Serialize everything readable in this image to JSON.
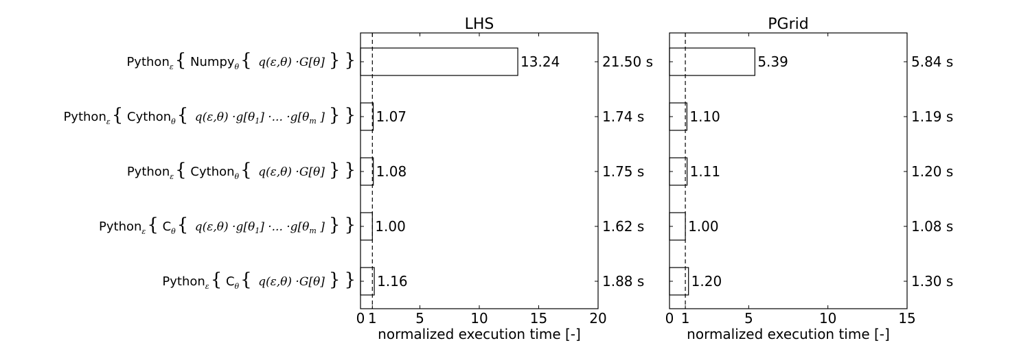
{
  "chart_data": [
    {
      "type": "bar",
      "orientation": "horizontal",
      "title": "LHS",
      "xlabel": "normalized execution time [-]",
      "xlim": [
        0,
        20
      ],
      "xticks": [
        "0",
        "1",
        "5",
        "10",
        "15",
        "20"
      ],
      "reference_line": 1,
      "categories": [
        "Python_ε{ Numpy_θ{ q(ε,θ) ·G[θ] } }",
        "Python_ε{ Cython_θ{ q(ε,θ) ·g[θ_1] ·... ·g[θ_m] } }",
        "Python_ε{ Cython_θ{ q(ε,θ) ·G[θ] } }",
        "Python_ε{ C_θ{ q(ε,θ) ·g[θ_1] ·... ·g[θ_m] } }",
        "Python_ε{ C_θ{ q(ε,θ) ·G[θ] } }"
      ],
      "values": [
        13.24,
        1.07,
        1.08,
        1.0,
        1.16
      ],
      "value_labels": [
        "13.24",
        "1.07",
        "1.08",
        "1.00",
        "1.16"
      ],
      "right_labels": [
        "21.50 s",
        "1.74 s",
        "1.75 s",
        "1.62 s",
        "1.88 s"
      ]
    },
    {
      "type": "bar",
      "orientation": "horizontal",
      "title": "PGrid",
      "xlabel": "normalized execution time [-]",
      "xlim": [
        0,
        15
      ],
      "xticks": [
        "0",
        "1",
        "5",
        "10",
        "15"
      ],
      "reference_line": 1,
      "values": [
        5.39,
        1.1,
        1.11,
        1.0,
        1.2
      ],
      "value_labels": [
        "5.39",
        "1.10",
        "1.11",
        "1.00",
        "1.20"
      ],
      "right_labels": [
        "5.84 s",
        "1.19 s",
        "1.20 s",
        "1.08 s",
        "1.30 s"
      ]
    }
  ],
  "row_labels": [
    {
      "outer": "Python",
      "outer_sub": "ε",
      "inner": "Numpy",
      "inner_sub": "θ",
      "expr": "q(ε,θ) ·G[θ]",
      "kind": "G"
    },
    {
      "outer": "Python",
      "outer_sub": "ε",
      "inner": "Cython",
      "inner_sub": "θ",
      "expr": "q(ε,θ) ·g[θ",
      "kind": "g"
    },
    {
      "outer": "Python",
      "outer_sub": "ε",
      "inner": "Cython",
      "inner_sub": "θ",
      "expr": "q(ε,θ) ·G[θ]",
      "kind": "G"
    },
    {
      "outer": "Python",
      "outer_sub": "ε",
      "inner": "C",
      "inner_sub": "θ",
      "expr": "q(ε,θ) ·g[θ",
      "kind": "g"
    },
    {
      "outer": "Python",
      "outer_sub": "ε",
      "inner": "C",
      "inner_sub": "θ",
      "expr": "q(ε,θ) ·G[θ]",
      "kind": "G"
    }
  ]
}
